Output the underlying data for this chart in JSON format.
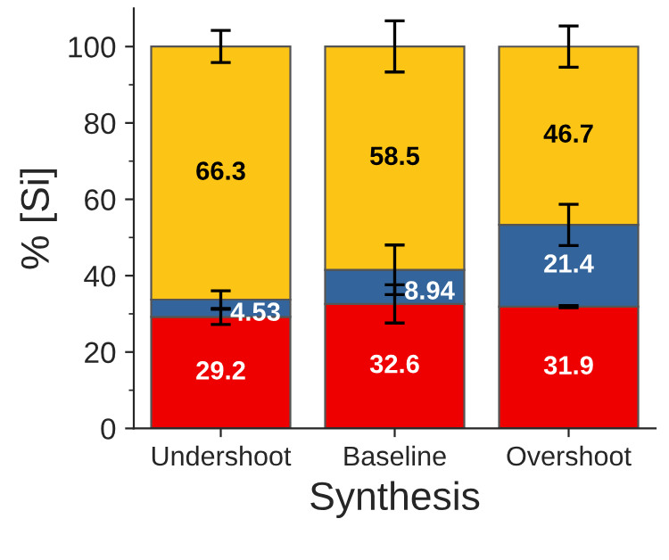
{
  "chart_data": {
    "type": "bar",
    "stacked": true,
    "xlabel": "Synthesis",
    "ylabel": "% [Si]",
    "categories": [
      "Undershoot",
      "Baseline",
      "Overshoot"
    ],
    "series": [
      {
        "color": "#ee0000",
        "values": [
          29.2,
          32.6,
          31.9
        ],
        "errors": [
          2,
          5,
          0.3
        ]
      },
      {
        "color": "#33649b",
        "values": [
          4.53,
          8.94,
          21.4
        ],
        "errors": [
          2.3,
          6.5,
          5.4
        ]
      },
      {
        "color": "#fcc515",
        "values": [
          66.3,
          58.5,
          46.7
        ],
        "errors": [
          4.2,
          6.7,
          5.4
        ]
      }
    ],
    "ylim": [
      0,
      110
    ],
    "yticks": [
      0,
      20,
      40,
      60,
      80,
      100
    ],
    "data_labels": true,
    "grid": false,
    "legend": false
  }
}
